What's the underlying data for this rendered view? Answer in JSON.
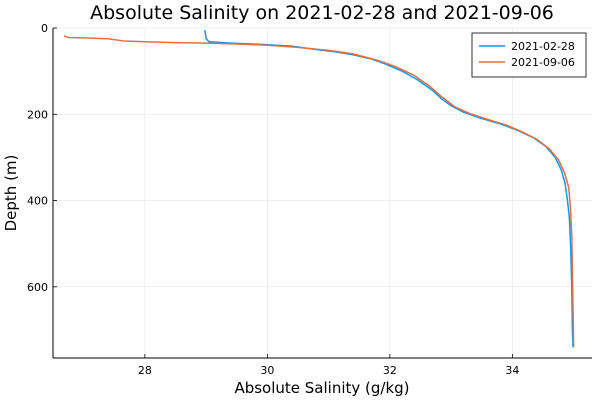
{
  "chart_data": {
    "type": "line",
    "title": "Absolute Salinity on 2021-02-28 and 2021-09-06",
    "xlabel": "Absolute Salinity (g/kg)",
    "ylabel": "Depth (m)",
    "xlim": [
      26.5,
      35.3
    ],
    "ylim": [
      0,
      765
    ],
    "y_inverted": true,
    "xticks": [
      28,
      30,
      32,
      34
    ],
    "yticks": [
      0,
      200,
      400,
      600
    ],
    "grid": true,
    "legend_position": "top-right",
    "colors": [
      "#009af9",
      "#e26f46"
    ],
    "series": [
      {
        "name": "2021-02-28",
        "points": [
          [
            28.98,
            5
          ],
          [
            28.99,
            15
          ],
          [
            29.0,
            25
          ],
          [
            29.05,
            32
          ],
          [
            29.4,
            35
          ],
          [
            29.9,
            38
          ],
          [
            30.4,
            42
          ],
          [
            30.7,
            48
          ],
          [
            31.1,
            55
          ],
          [
            31.4,
            62
          ],
          [
            31.7,
            72
          ],
          [
            31.9,
            82
          ],
          [
            32.2,
            100
          ],
          [
            32.45,
            120
          ],
          [
            32.7,
            145
          ],
          [
            32.85,
            165
          ],
          [
            33.0,
            180
          ],
          [
            33.2,
            195
          ],
          [
            33.5,
            210
          ],
          [
            33.8,
            222
          ],
          [
            34.1,
            238
          ],
          [
            34.35,
            255
          ],
          [
            34.55,
            275
          ],
          [
            34.7,
            300
          ],
          [
            34.8,
            330
          ],
          [
            34.86,
            360
          ],
          [
            34.9,
            400
          ],
          [
            34.93,
            440
          ],
          [
            34.95,
            500
          ],
          [
            34.97,
            600
          ],
          [
            34.98,
            700
          ],
          [
            34.99,
            740
          ]
        ]
      },
      {
        "name": "2021-09-06",
        "points": [
          [
            26.68,
            18
          ],
          [
            26.75,
            22
          ],
          [
            27.0,
            23
          ],
          [
            27.4,
            25
          ],
          [
            27.65,
            30
          ],
          [
            28.0,
            32
          ],
          [
            28.5,
            34
          ],
          [
            29.0,
            35
          ],
          [
            29.5,
            37
          ],
          [
            30.0,
            40
          ],
          [
            30.5,
            45
          ],
          [
            31.0,
            52
          ],
          [
            31.4,
            60
          ],
          [
            31.8,
            75
          ],
          [
            32.1,
            90
          ],
          [
            32.4,
            110
          ],
          [
            32.65,
            135
          ],
          [
            32.85,
            160
          ],
          [
            33.05,
            182
          ],
          [
            33.3,
            198
          ],
          [
            33.6,
            212
          ],
          [
            33.9,
            225
          ],
          [
            34.15,
            240
          ],
          [
            34.4,
            258
          ],
          [
            34.6,
            280
          ],
          [
            34.75,
            305
          ],
          [
            34.85,
            335
          ],
          [
            34.92,
            370
          ],
          [
            34.95,
            420
          ],
          [
            34.97,
            480
          ],
          [
            34.98,
            560
          ],
          [
            34.99,
            650
          ],
          [
            35.0,
            740
          ]
        ]
      }
    ]
  }
}
